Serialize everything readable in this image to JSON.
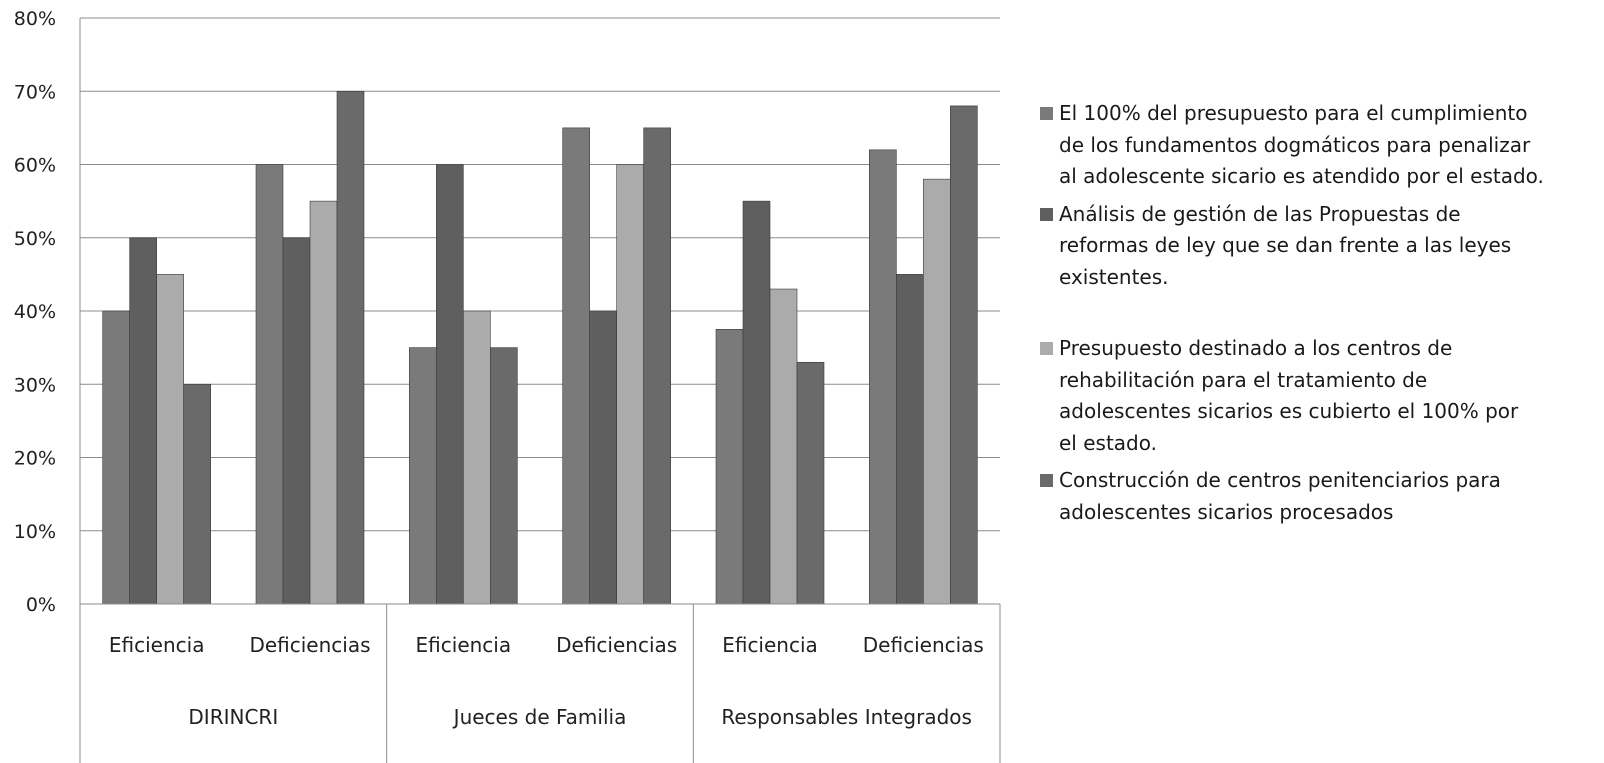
{
  "chart_data": {
    "type": "bar",
    "y_ticks": [
      "0%",
      "10%",
      "20%",
      "30%",
      "40%",
      "50%",
      "60%",
      "70%",
      "80%"
    ],
    "ylim": [
      0,
      80
    ],
    "grid": true,
    "legend_position": "right",
    "groups": [
      {
        "label": "DIRINCRI",
        "categories": [
          "Eficiencia",
          "Deficiencias"
        ]
      },
      {
        "label": "Jueces de Familia",
        "categories": [
          "Eficiencia",
          "Deficiencias"
        ]
      },
      {
        "label": "Responsables Integrados",
        "categories": [
          "Eficiencia",
          "Deficiencias"
        ]
      }
    ],
    "series": [
      {
        "name": "El 100% del presupuesto para el cumplimiento de los fundamentos dogmáticos para penalizar al adolescente sicario es atendido por el estado.",
        "color": "#7a7a7a",
        "values": [
          40,
          60,
          35,
          65,
          37.5,
          62
        ]
      },
      {
        "name": "Análisis de gestión de las Propuestas de reformas de ley que se dan frente a las leyes existentes.",
        "color": "#5f5f5f",
        "values": [
          50,
          50,
          60,
          40,
          55,
          45
        ]
      },
      {
        "name": "Presupuesto destinado a los centros de rehabilitación para el tratamiento de adolescentes sicarios es cubierto el 100% por el estado.",
        "color": "#ababab",
        "values": [
          45,
          55,
          40,
          60,
          43,
          58
        ]
      },
      {
        "name": "Construcción de centros penitenciarios para adolescentes sicarios procesados",
        "color": "#6a6a6a",
        "values": [
          30,
          70,
          35,
          65,
          33,
          68
        ]
      }
    ]
  }
}
